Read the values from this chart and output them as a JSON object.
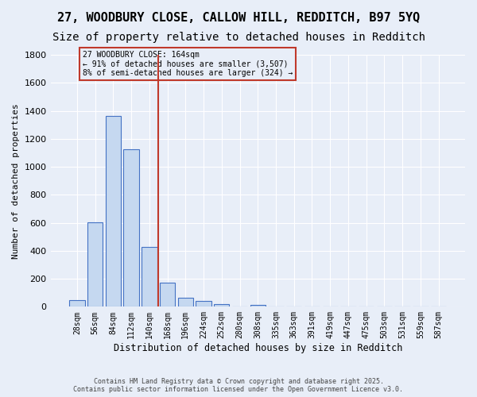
{
  "title_line1": "27, WOODBURY CLOSE, CALLOW HILL, REDDITCH, B97 5YQ",
  "title_line2": "Size of property relative to detached houses in Redditch",
  "xlabel": "Distribution of detached houses by size in Redditch",
  "ylabel": "Number of detached properties",
  "bin_labels": [
    "28sqm",
    "56sqm",
    "84sqm",
    "112sqm",
    "140sqm",
    "168sqm",
    "196sqm",
    "224sqm",
    "252sqm",
    "280sqm",
    "308sqm",
    "335sqm",
    "363sqm",
    "391sqm",
    "419sqm",
    "447sqm",
    "475sqm",
    "503sqm",
    "531sqm",
    "559sqm",
    "587sqm"
  ],
  "bar_values": [
    50,
    605,
    1365,
    1125,
    430,
    170,
    65,
    40,
    20,
    0,
    15,
    0,
    0,
    0,
    0,
    0,
    0,
    0,
    0,
    0,
    0
  ],
  "bar_color": "#c5d8f0",
  "bar_edge_color": "#4472c4",
  "vline_x": 5,
  "vline_color": "#c0392b",
  "annotation_text": "27 WOODBURY CLOSE: 164sqm\n← 91% of detached houses are smaller (3,507)\n8% of semi-detached houses are larger (324) →",
  "annotation_box_color": "#c0392b",
  "ylim": [
    0,
    1800
  ],
  "yticks": [
    0,
    200,
    400,
    600,
    800,
    1000,
    1200,
    1400,
    1600,
    1800
  ],
  "bg_color": "#e8eef8",
  "footer_text": "Contains HM Land Registry data © Crown copyright and database right 2025.\nContains public sector information licensed under the Open Government Licence v3.0.",
  "grid_color": "#ffffff",
  "title_fontsize": 11,
  "subtitle_fontsize": 10
}
